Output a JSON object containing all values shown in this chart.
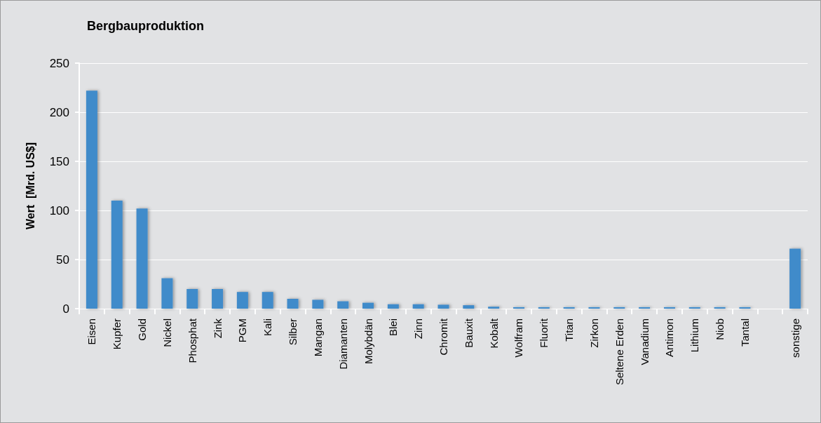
{
  "chart_data": {
    "type": "bar",
    "title": "Bergbauproduktion",
    "ylabel": "Wert  [Mrd. US$]",
    "categories": [
      "Eisen",
      "Kupfer",
      "Gold",
      "Nickel",
      "Phosphat",
      "Zink",
      "PGM",
      "Kali",
      "Silber",
      "Mangan",
      "Diamanten",
      "Molybdän",
      "Blei",
      "Zinn",
      "Chromit",
      "Bauxit",
      "Kobalt",
      "Wolfram",
      "Fluorit",
      "Titan",
      "Zirkon",
      "Seltene Erden",
      "Vanadium",
      "Antimon",
      "Lithium",
      "Niob",
      "Tantal",
      null,
      "sonstige"
    ],
    "values": [
      222,
      110,
      102,
      31,
      20,
      20,
      17,
      17,
      10,
      9,
      7.5,
      6,
      4.5,
      4.5,
      4,
      3.5,
      2,
      1.5,
      1.5,
      1.5,
      1.5,
      1.5,
      1.5,
      1.5,
      1.5,
      1.5,
      1.5,
      null,
      61
    ],
    "color": "#418bca",
    "ylim": [
      0,
      250
    ],
    "yticks": [
      0,
      50,
      100,
      150,
      200,
      250
    ],
    "grid": "y"
  }
}
